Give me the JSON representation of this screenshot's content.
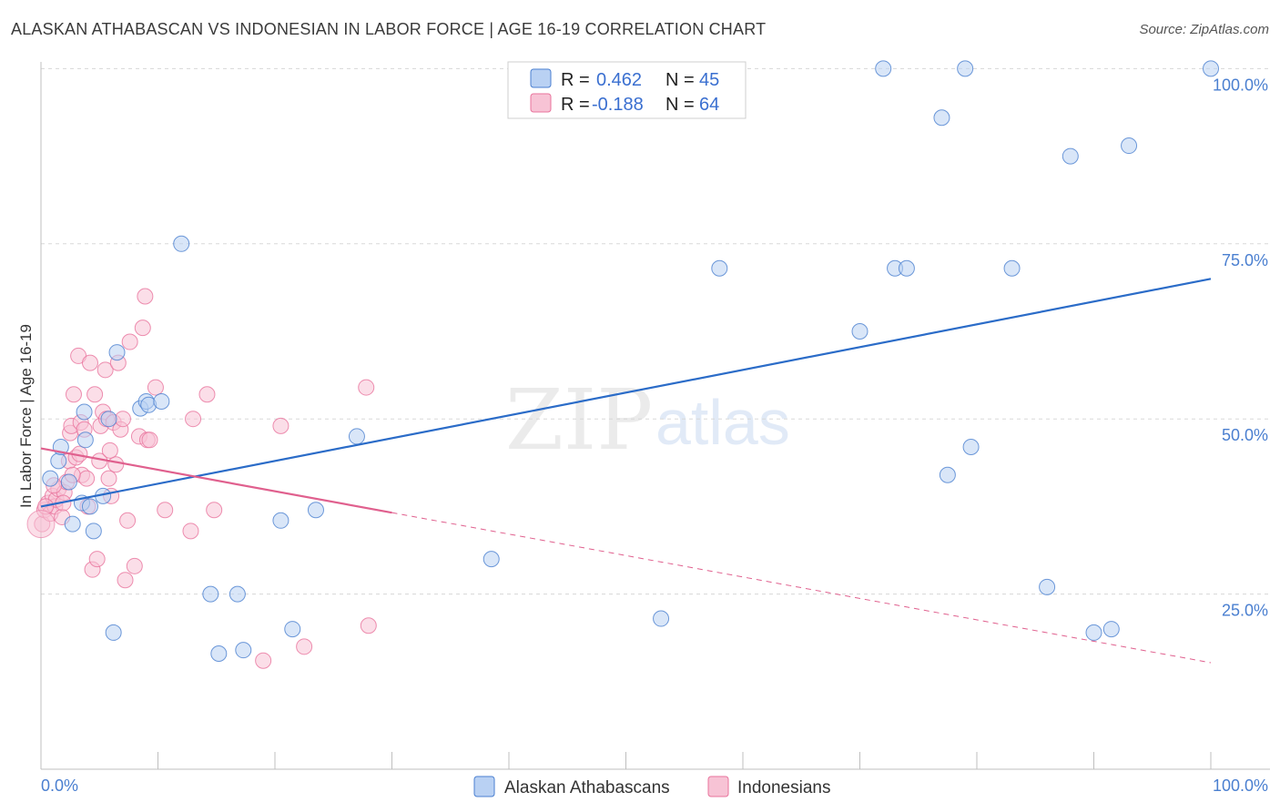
{
  "header": {
    "title": "ALASKAN ATHABASCAN VS INDONESIAN IN LABOR FORCE | AGE 16-19 CORRELATION CHART",
    "source": "Source: ZipAtlas.com"
  },
  "colors": {
    "blue": "#4a7fd0",
    "blue_fill": "#b9d1f3",
    "blue_line": "#2b6cc8",
    "pink": "#e8739c",
    "pink_fill": "#f7c3d5",
    "pink_line": "#e0608e",
    "grid": "#d8d8d8"
  },
  "watermark": {
    "zip": "ZIP",
    "atlas": "atlas"
  },
  "legend": {
    "entries": [
      {
        "r_label": "R = ",
        "r_value": "0.462",
        "n_label": "N = ",
        "n_value": "45"
      },
      {
        "r_label": "R = ",
        "r_value": "-0.188",
        "n_label": "N = ",
        "n_value": "64"
      }
    ]
  },
  "chart_data": {
    "type": "scatter",
    "title": "ALASKAN ATHABASCAN VS INDONESIAN IN LABOR FORCE | AGE 16-19 CORRELATION CHART",
    "xlabel": "",
    "ylabel": "In Labor Force | Age 16-19",
    "xlim": [
      0,
      100
    ],
    "ylim": [
      0,
      102
    ],
    "x_tick_labels": [
      "0.0%",
      "100.0%"
    ],
    "y_ticks": [
      {
        "value": 25,
        "label": "25.0%"
      },
      {
        "value": 50,
        "label": "50.0%"
      },
      {
        "value": 75,
        "label": "75.0%"
      },
      {
        "value": 100,
        "label": "100.0%"
      }
    ],
    "series": [
      {
        "name": "Alaskan Athabascans",
        "trend": {
          "x": [
            0,
            100
          ],
          "y": [
            37.5,
            70.0
          ],
          "dashed_from": null
        },
        "points": [
          [
            0.8,
            41.5
          ],
          [
            1.5,
            44.0
          ],
          [
            1.7,
            46.0
          ],
          [
            2.4,
            41.0
          ],
          [
            2.7,
            35.0
          ],
          [
            3.5,
            38.0
          ],
          [
            3.7,
            51.0
          ],
          [
            3.8,
            47.0
          ],
          [
            4.2,
            37.5
          ],
          [
            4.5,
            34.0
          ],
          [
            5.3,
            39.0
          ],
          [
            5.8,
            50.0
          ],
          [
            6.2,
            19.5
          ],
          [
            6.5,
            59.5
          ],
          [
            8.5,
            51.5
          ],
          [
            9.0,
            52.5
          ],
          [
            9.2,
            52.0
          ],
          [
            10.3,
            52.5
          ],
          [
            12.0,
            75.0
          ],
          [
            14.5,
            25.0
          ],
          [
            15.2,
            16.5
          ],
          [
            16.8,
            25.0
          ],
          [
            17.3,
            17.0
          ],
          [
            20.5,
            35.5
          ],
          [
            21.5,
            20.0
          ],
          [
            23.5,
            37.0
          ],
          [
            27.0,
            47.5
          ],
          [
            38.5,
            30.0
          ],
          [
            53.0,
            21.5
          ],
          [
            58.0,
            71.5
          ],
          [
            70.0,
            62.5
          ],
          [
            72.0,
            100.0
          ],
          [
            73.0,
            71.5
          ],
          [
            74.0,
            71.5
          ],
          [
            77.0,
            93.0
          ],
          [
            77.5,
            42.0
          ],
          [
            79.0,
            100.0
          ],
          [
            79.5,
            46.0
          ],
          [
            83.0,
            71.5
          ],
          [
            86.0,
            26.0
          ],
          [
            88.0,
            87.5
          ],
          [
            90.0,
            19.5
          ],
          [
            91.5,
            20.0
          ],
          [
            93.0,
            89.0
          ],
          [
            100.0,
            100.0
          ]
        ]
      },
      {
        "name": "Indonesians",
        "trend": {
          "x": [
            0,
            100
          ],
          "y": [
            45.8,
            15.2
          ],
          "dashed_from": 30
        },
        "points": [
          [
            0.1,
            35.0
          ],
          [
            0.3,
            37.0
          ],
          [
            0.6,
            38.0
          ],
          [
            0.8,
            36.5
          ],
          [
            1.0,
            39.0
          ],
          [
            1.2,
            37.5
          ],
          [
            1.3,
            38.5
          ],
          [
            1.5,
            40.0
          ],
          [
            1.8,
            36.0
          ],
          [
            2.0,
            39.5
          ],
          [
            2.2,
            41.0
          ],
          [
            2.4,
            44.0
          ],
          [
            2.5,
            48.0
          ],
          [
            2.6,
            49.0
          ],
          [
            2.8,
            53.5
          ],
          [
            3.0,
            44.5
          ],
          [
            3.2,
            59.0
          ],
          [
            3.4,
            49.5
          ],
          [
            3.5,
            42.0
          ],
          [
            3.7,
            48.5
          ],
          [
            3.9,
            41.5
          ],
          [
            4.0,
            37.5
          ],
          [
            4.2,
            58.0
          ],
          [
            4.4,
            28.5
          ],
          [
            4.6,
            53.5
          ],
          [
            4.8,
            30.0
          ],
          [
            5.0,
            44.0
          ],
          [
            5.1,
            49.0
          ],
          [
            5.3,
            51.0
          ],
          [
            5.5,
            57.0
          ],
          [
            5.6,
            50.0
          ],
          [
            5.8,
            41.5
          ],
          [
            6.0,
            39.0
          ],
          [
            6.2,
            49.5
          ],
          [
            6.4,
            43.5
          ],
          [
            6.6,
            58.0
          ],
          [
            6.8,
            48.5
          ],
          [
            7.0,
            50.0
          ],
          [
            7.2,
            27.0
          ],
          [
            7.4,
            35.5
          ],
          [
            7.6,
            61.0
          ],
          [
            8.0,
            29.0
          ],
          [
            8.4,
            47.5
          ],
          [
            8.7,
            63.0
          ],
          [
            8.9,
            67.5
          ],
          [
            9.1,
            47.0
          ],
          [
            9.3,
            47.0
          ],
          [
            9.8,
            54.5
          ],
          [
            10.6,
            37.0
          ],
          [
            12.8,
            34.0
          ],
          [
            13.0,
            50.0
          ],
          [
            14.2,
            53.5
          ],
          [
            14.8,
            37.0
          ],
          [
            19.0,
            15.5
          ],
          [
            20.5,
            49.0
          ],
          [
            22.5,
            17.5
          ],
          [
            27.8,
            54.5
          ],
          [
            28.0,
            20.5
          ],
          [
            1.1,
            40.5
          ],
          [
            0.4,
            37.5
          ],
          [
            1.9,
            38.0
          ],
          [
            2.7,
            42.0
          ],
          [
            3.3,
            45.0
          ],
          [
            5.9,
            45.5
          ]
        ]
      }
    ]
  }
}
